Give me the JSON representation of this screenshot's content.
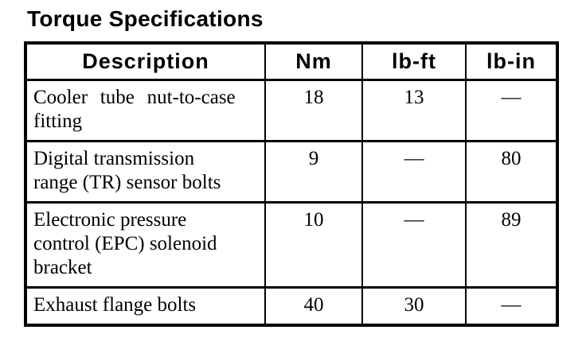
{
  "title": "Torque Specifications",
  "colors": {
    "background": "#ffffff",
    "text": "#000000",
    "border": "#000000"
  },
  "table": {
    "headers": [
      "Description",
      "Nm",
      "lb-ft",
      "lb-in"
    ],
    "rows": [
      {
        "description": "Cooler tube nut-to-case\nfitting",
        "nm": "18",
        "lb_ft": "13",
        "lb_in": "—"
      },
      {
        "description": "Digital transmission\nrange (TR) sensor bolts",
        "nm": "9",
        "lb_ft": "—",
        "lb_in": "80"
      },
      {
        "description": "Electronic pressure\ncontrol (EPC) solenoid\nbracket",
        "nm": "10",
        "lb_ft": "—",
        "lb_in": "89"
      },
      {
        "description": "Exhaust flange bolts",
        "nm": "40",
        "lb_ft": "30",
        "lb_in": "—"
      }
    ]
  }
}
